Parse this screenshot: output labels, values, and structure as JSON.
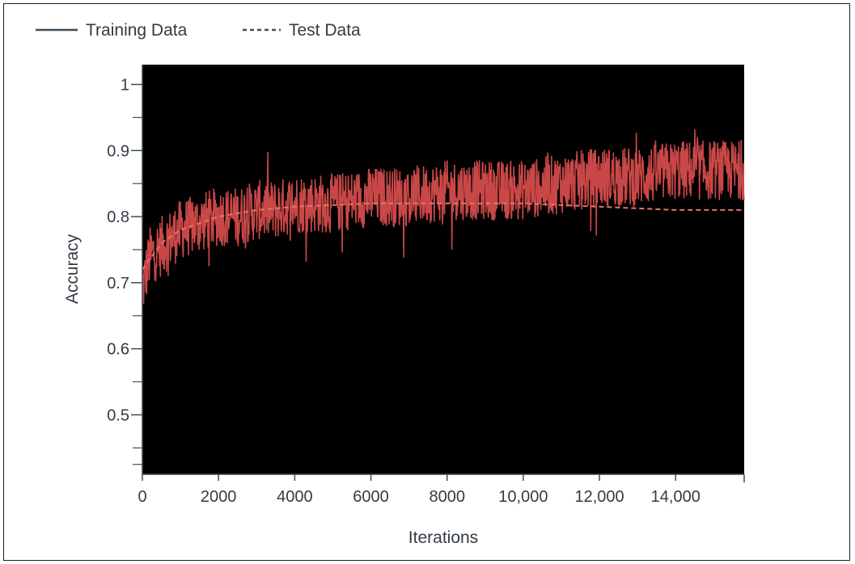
{
  "chart_data": {
    "type": "line",
    "title": "",
    "xlabel": "Iterations",
    "ylabel": "Accuracy",
    "xlim": [
      0,
      15800
    ],
    "ylim": [
      0.41,
      1.03
    ],
    "xticks": [
      0,
      2000,
      4000,
      6000,
      8000,
      10000,
      12000,
      14000
    ],
    "xtick_labels": [
      "0",
      "2000",
      "4000",
      "6000",
      "8000",
      "10,000",
      "12,000",
      "14,000"
    ],
    "yticks": [
      0.5,
      0.6,
      0.7,
      0.8,
      0.9,
      1.0
    ],
    "ytick_labels": [
      "0.5",
      "0.6",
      "0.7",
      "0.8",
      "0.9",
      "1"
    ],
    "plot_background": "#000000",
    "grid": false,
    "legend_position": "top-left",
    "series": [
      {
        "name": "Training Data",
        "style": "solid",
        "legend_color": "#3e4c59",
        "line_color": "#c94747",
        "x": [
          0,
          200,
          400,
          600,
          800,
          1000,
          1500,
          2000,
          2500,
          3000,
          3500,
          4000,
          5000,
          6000,
          7000,
          8000,
          9000,
          10000,
          11000,
          12000,
          13000,
          14000,
          15000,
          15800
        ],
        "y": [
          0.69,
          0.74,
          0.75,
          0.76,
          0.77,
          0.78,
          0.79,
          0.8,
          0.8,
          0.81,
          0.81,
          0.82,
          0.82,
          0.83,
          0.83,
          0.84,
          0.84,
          0.84,
          0.85,
          0.86,
          0.86,
          0.87,
          0.87,
          0.87
        ],
        "noise_amplitude": 0.045
      },
      {
        "name": "Test Data",
        "style": "dashed",
        "legend_color": "#3e4c59",
        "line_color": "#e8736a",
        "x": [
          0,
          500,
          1000,
          2000,
          3000,
          4000,
          6000,
          8000,
          10000,
          12000,
          14000,
          15800
        ],
        "y": [
          0.72,
          0.76,
          0.78,
          0.8,
          0.81,
          0.815,
          0.82,
          0.82,
          0.82,
          0.815,
          0.81,
          0.81
        ]
      }
    ]
  }
}
